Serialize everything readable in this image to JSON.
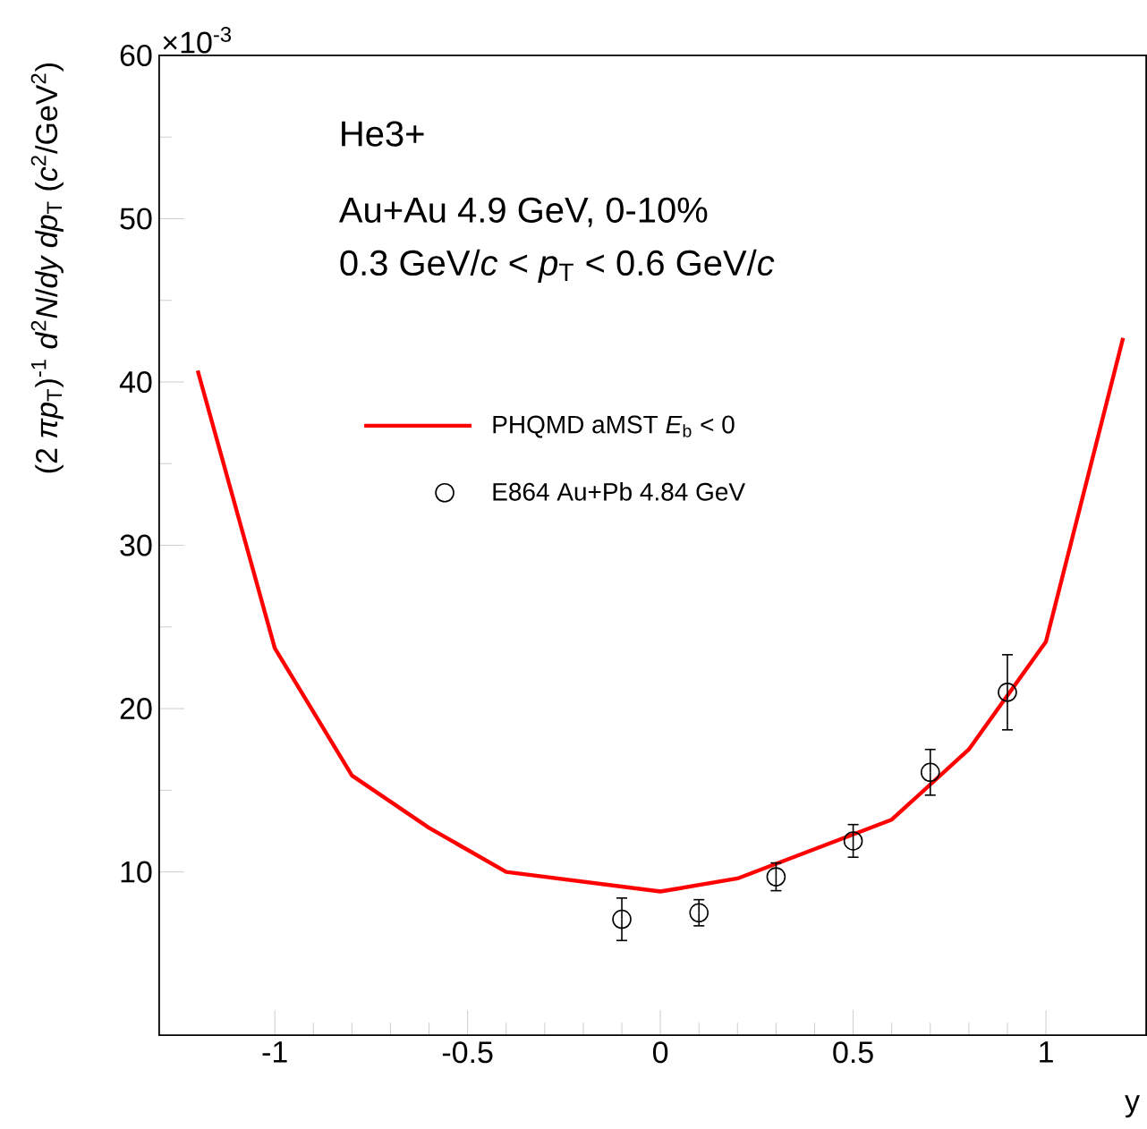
{
  "chart_data": {
    "type": "line",
    "xlabel": "y",
    "ylabel": "(2 *πp*$_{T}$)$^{-1}$ *d*$^{2}$*N*/*dy dp*$_{T}$ (*c*$^{2}$/GeV$^{2}$)",
    "annotations": [
      "He3+",
      "Au+Au 4.9 GeV, 0-10%",
      "0.3 GeV/*c* < *p*$_{T}$ < 0.6 GeV/*c*",
      "×10$^{-3}$"
    ],
    "series": [
      {
        "name": "PHQMD aMST *E*$_{b}$ < 0",
        "color": "#ff0000",
        "marker": "none",
        "x": [
          -1.2,
          -1.0,
          -0.8,
          -0.6,
          -0.4,
          -0.2,
          0.0,
          0.2,
          0.4,
          0.6,
          0.8,
          1.0,
          1.2
        ],
        "values": [
          40.7,
          23.7,
          15.9,
          12.7,
          10.0,
          9.4,
          8.8,
          9.6,
          11.4,
          13.2,
          17.5,
          24.1,
          42.7
        ]
      },
      {
        "name": "E864 Au+Pb 4.84 GeV",
        "type": "scatter",
        "color": "#000000",
        "marker": "circle",
        "x": [
          -0.1,
          0.1,
          0.3,
          0.5,
          0.7,
          0.9
        ],
        "values": [
          7.1,
          7.5,
          9.7,
          11.9,
          16.1,
          21.0
        ],
        "errors": [
          1.3,
          0.8,
          0.85,
          1.0,
          1.4,
          2.3
        ]
      }
    ],
    "xlim": [
      -1.3,
      1.26
    ],
    "ylim": [
      0,
      60
    ],
    "xticks": [
      -1,
      -0.5,
      0,
      0.5,
      1
    ],
    "yticks": [
      10,
      20,
      30,
      40,
      50,
      60
    ],
    "grid": false,
    "legend": "top"
  }
}
